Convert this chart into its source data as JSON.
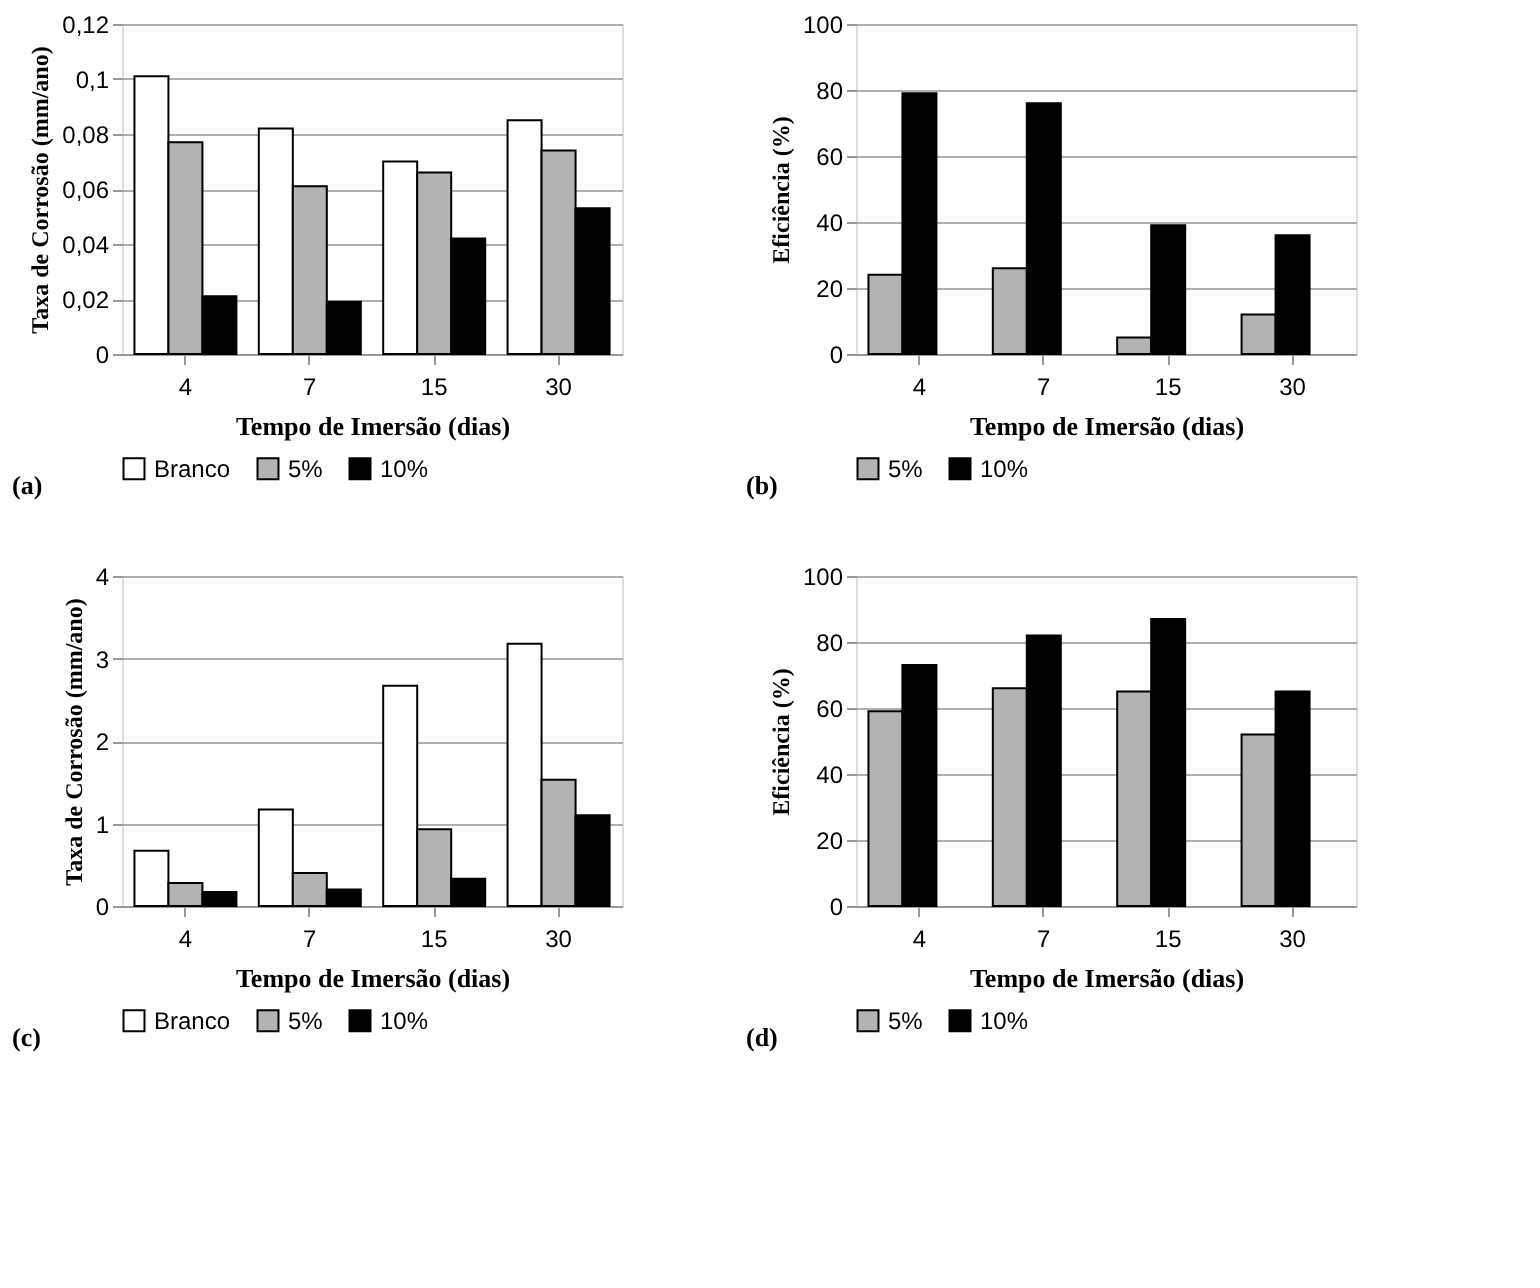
{
  "chart_data": [
    {
      "type": "bar",
      "categories": [
        "4",
        "7",
        "15",
        "30"
      ],
      "xlabel": "Tempo de Imersão (dias)",
      "ylabel": "Taxa de Corrosão (mm/ano)",
      "ylim": [
        0,
        0.12
      ],
      "yticks": [
        0,
        {
          "value": 0.02,
          "label": "0,02"
        },
        {
          "value": 0.04,
          "label": "0,04"
        },
        {
          "value": 0.06,
          "label": "0,06"
        },
        {
          "value": 0.08,
          "label": "0,08"
        },
        {
          "value": 0.1,
          "label": "0,1"
        },
        {
          "value": 0.12,
          "label": "0,12"
        }
      ],
      "grid": "y",
      "legend": "bottom",
      "annotations": [
        "(a)"
      ],
      "series": [
        {
          "name": "Branco",
          "color": "#ffffff",
          "values": [
            0.101,
            0.082,
            0.07,
            0.085
          ]
        },
        {
          "name": "5%",
          "color": "#b3b3b3",
          "values": [
            0.077,
            0.061,
            0.066,
            0.074
          ]
        },
        {
          "name": "10%",
          "color": "#000000",
          "values": [
            0.021,
            0.019,
            0.042,
            0.053
          ]
        }
      ]
    },
    {
      "type": "bar",
      "categories": [
        "4",
        "7",
        "15",
        "30"
      ],
      "xlabel": "Tempo de Imersão (dias)",
      "ylabel": "Eficiência (%)",
      "ylim": [
        0,
        100
      ],
      "yticks": [
        0,
        20,
        40,
        60,
        80,
        100
      ],
      "grid": "y",
      "legend": "bottom",
      "annotations": [
        "(b)"
      ],
      "series": [
        {
          "name": "5%",
          "color": "#b3b3b3",
          "values": [
            24,
            26,
            5,
            12
          ]
        },
        {
          "name": "10%",
          "color": "#000000",
          "values": [
            79,
            76,
            39,
            36
          ]
        }
      ]
    },
    {
      "type": "bar",
      "categories": [
        "4",
        "7",
        "15",
        "30"
      ],
      "xlabel": "Tempo de Imersão (dias)",
      "ylabel": "Taxa de Corrosão (mm/ano)",
      "ylim": [
        0,
        4
      ],
      "yticks": [
        0,
        1,
        2,
        3,
        4
      ],
      "grid": "y",
      "legend": "bottom",
      "annotations": [
        "(c)"
      ],
      "series": [
        {
          "name": "Branco",
          "color": "#ffffff",
          "values": [
            0.67,
            1.17,
            2.67,
            3.18
          ]
        },
        {
          "name": "5%",
          "color": "#b3b3b3",
          "values": [
            0.28,
            0.4,
            0.93,
            1.53
          ]
        },
        {
          "name": "10%",
          "color": "#000000",
          "values": [
            0.17,
            0.2,
            0.33,
            1.1
          ]
        }
      ]
    },
    {
      "type": "bar",
      "categories": [
        "4",
        "7",
        "15",
        "30"
      ],
      "xlabel": "Tempo de Imersão (dias)",
      "ylabel": "Eficiência (%)",
      "ylim": [
        0,
        100
      ],
      "yticks": [
        0,
        20,
        40,
        60,
        80,
        100
      ],
      "grid": "y",
      "legend": "bottom",
      "annotations": [
        "(d)"
      ],
      "series": [
        {
          "name": "5%",
          "color": "#b3b3b3",
          "values": [
            59,
            66,
            65,
            52
          ]
        },
        {
          "name": "10%",
          "color": "#000000",
          "values": [
            73,
            82,
            87,
            65
          ]
        }
      ]
    }
  ]
}
